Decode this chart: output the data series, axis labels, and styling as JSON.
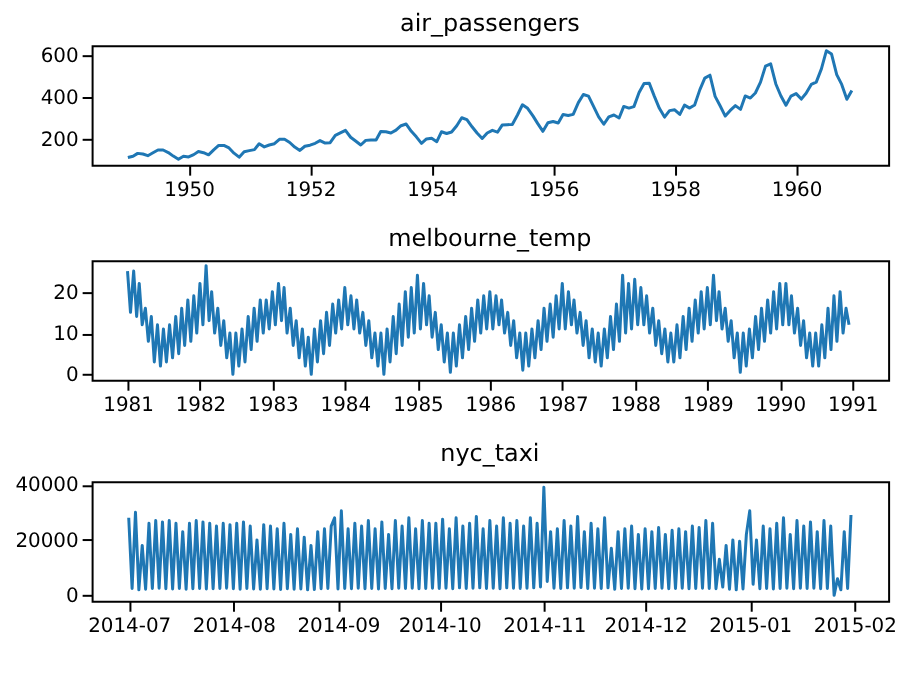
{
  "chart_data": [
    {
      "type": "line",
      "title": "air_passengers",
      "color": "#1f77b4",
      "x": [
        "1949-01",
        "1949-02",
        "1949-03",
        "1949-04",
        "1949-05",
        "1949-06",
        "1949-07",
        "1949-08",
        "1949-09",
        "1949-10",
        "1949-11",
        "1949-12",
        "1950-01",
        "1950-02",
        "1950-03",
        "1950-04",
        "1950-05",
        "1950-06",
        "1950-07",
        "1950-08",
        "1950-09",
        "1950-10",
        "1950-11",
        "1950-12",
        "1951-01",
        "1951-02",
        "1951-03",
        "1951-04",
        "1951-05",
        "1951-06",
        "1951-07",
        "1951-08",
        "1951-09",
        "1951-10",
        "1951-11",
        "1951-12",
        "1952-01",
        "1952-02",
        "1952-03",
        "1952-04",
        "1952-05",
        "1952-06",
        "1952-07",
        "1952-08",
        "1952-09",
        "1952-10",
        "1952-11",
        "1952-12",
        "1953-01",
        "1953-02",
        "1953-03",
        "1953-04",
        "1953-05",
        "1953-06",
        "1953-07",
        "1953-08",
        "1953-09",
        "1953-10",
        "1953-11",
        "1953-12",
        "1954-01",
        "1954-02",
        "1954-03",
        "1954-04",
        "1954-05",
        "1954-06",
        "1954-07",
        "1954-08",
        "1954-09",
        "1954-10",
        "1954-11",
        "1954-12",
        "1955-01",
        "1955-02",
        "1955-03",
        "1955-04",
        "1955-05",
        "1955-06",
        "1955-07",
        "1955-08",
        "1955-09",
        "1955-10",
        "1955-11",
        "1955-12",
        "1956-01",
        "1956-02",
        "1956-03",
        "1956-04",
        "1956-05",
        "1956-06",
        "1956-07",
        "1956-08",
        "1956-09",
        "1956-10",
        "1956-11",
        "1956-12",
        "1957-01",
        "1957-02",
        "1957-03",
        "1957-04",
        "1957-05",
        "1957-06",
        "1957-07",
        "1957-08",
        "1957-09",
        "1957-10",
        "1957-11",
        "1957-12",
        "1958-01",
        "1958-02",
        "1958-03",
        "1958-04",
        "1958-05",
        "1958-06",
        "1958-07",
        "1958-08",
        "1958-09",
        "1958-10",
        "1958-11",
        "1958-12",
        "1959-01",
        "1959-02",
        "1959-03",
        "1959-04",
        "1959-05",
        "1959-06",
        "1959-07",
        "1959-08",
        "1959-09",
        "1959-10",
        "1959-11",
        "1959-12",
        "1960-01",
        "1960-02",
        "1960-03",
        "1960-04",
        "1960-05",
        "1960-06",
        "1960-07",
        "1960-08",
        "1960-09",
        "1960-10",
        "1960-11",
        "1960-12"
      ],
      "values": [
        112,
        118,
        132,
        129,
        121,
        135,
        148,
        148,
        136,
        119,
        104,
        118,
        115,
        126,
        141,
        135,
        125,
        149,
        170,
        170,
        158,
        133,
        114,
        140,
        145,
        150,
        178,
        163,
        172,
        178,
        199,
        199,
        184,
        162,
        146,
        166,
        171,
        180,
        193,
        181,
        183,
        218,
        230,
        242,
        209,
        191,
        172,
        194,
        196,
        196,
        236,
        235,
        229,
        243,
        264,
        272,
        237,
        211,
        180,
        201,
        204,
        188,
        235,
        227,
        234,
        264,
        302,
        293,
        259,
        229,
        203,
        229,
        242,
        233,
        267,
        269,
        270,
        315,
        364,
        347,
        312,
        274,
        237,
        278,
        284,
        277,
        317,
        313,
        318,
        374,
        413,
        405,
        355,
        306,
        271,
        306,
        315,
        301,
        356,
        348,
        355,
        422,
        465,
        467,
        404,
        347,
        305,
        336,
        340,
        318,
        362,
        348,
        363,
        435,
        491,
        505,
        404,
        359,
        310,
        337,
        360,
        342,
        406,
        396,
        420,
        472,
        548,
        559,
        463,
        407,
        362,
        405,
        417,
        391,
        419,
        461,
        472,
        535,
        622,
        606,
        508,
        461,
        390,
        432
      ],
      "xlim": [
        "1948-05-28",
        "1961-07-07"
      ],
      "ylim": [
        78,
        648
      ],
      "xticks": [
        {
          "value": "1950",
          "label": "1950"
        },
        {
          "value": "1952",
          "label": "1952"
        },
        {
          "value": "1954",
          "label": "1954"
        },
        {
          "value": "1956",
          "label": "1956"
        },
        {
          "value": "1958",
          "label": "1958"
        },
        {
          "value": "1960",
          "label": "1960"
        }
      ],
      "yticks": [
        200,
        400,
        600
      ]
    },
    {
      "type": "line",
      "title": "melbourne_temp",
      "color": "#1f77b4",
      "x": [
        "1981-01-01",
        "1981-01-16",
        "1981-02-01",
        "1981-02-16",
        "1981-03-01",
        "1981-03-16",
        "1981-04-01",
        "1981-04-16",
        "1981-05-01",
        "1981-05-16",
        "1981-06-01",
        "1981-06-16",
        "1981-07-01",
        "1981-07-16",
        "1981-08-01",
        "1981-08-16",
        "1981-09-01",
        "1981-09-16",
        "1981-10-01",
        "1981-10-16",
        "1981-11-01",
        "1981-11-16",
        "1981-12-01",
        "1981-12-16",
        "1982-01-01",
        "1982-01-16",
        "1982-02-01",
        "1982-02-16",
        "1982-03-01",
        "1982-03-16",
        "1982-04-01",
        "1982-04-16",
        "1982-05-01",
        "1982-05-16",
        "1982-06-01",
        "1982-06-16",
        "1982-07-01",
        "1982-07-16",
        "1982-08-01",
        "1982-08-16",
        "1982-09-01",
        "1982-09-16",
        "1982-10-01",
        "1982-10-16",
        "1982-11-01",
        "1982-11-16",
        "1982-12-01",
        "1982-12-16",
        "1983-01-01",
        "1983-01-16",
        "1983-02-01",
        "1983-02-16",
        "1983-03-01",
        "1983-03-16",
        "1983-04-01",
        "1983-04-16",
        "1983-05-01",
        "1983-05-16",
        "1983-06-01",
        "1983-06-16",
        "1983-07-01",
        "1983-07-16",
        "1983-08-01",
        "1983-08-16",
        "1983-09-01",
        "1983-09-16",
        "1983-10-01",
        "1983-10-16",
        "1983-11-01",
        "1983-11-16",
        "1983-12-01",
        "1983-12-16",
        "1984-01-01",
        "1984-01-16",
        "1984-02-01",
        "1984-02-16",
        "1984-03-01",
        "1984-03-16",
        "1984-04-01",
        "1984-04-16",
        "1984-05-01",
        "1984-05-16",
        "1984-06-01",
        "1984-06-16",
        "1984-07-01",
        "1984-07-16",
        "1984-08-01",
        "1984-08-16",
        "1984-09-01",
        "1984-09-16",
        "1984-10-01",
        "1984-10-16",
        "1984-11-01",
        "1984-11-16",
        "1984-12-01",
        "1984-12-16",
        "1985-01-01",
        "1985-01-16",
        "1985-02-01",
        "1985-02-16",
        "1985-03-01",
        "1985-03-16",
        "1985-04-01",
        "1985-04-16",
        "1985-05-01",
        "1985-05-16",
        "1985-06-01",
        "1985-06-16",
        "1985-07-01",
        "1985-07-16",
        "1985-08-01",
        "1985-08-16",
        "1985-09-01",
        "1985-09-16",
        "1985-10-01",
        "1985-10-16",
        "1985-11-01",
        "1985-11-16",
        "1985-12-01",
        "1985-12-16",
        "1986-01-01",
        "1986-01-16",
        "1986-02-01",
        "1986-02-16",
        "1986-03-01",
        "1986-03-16",
        "1986-04-01",
        "1986-04-16",
        "1986-05-01",
        "1986-05-16",
        "1986-06-01",
        "1986-06-16",
        "1986-07-01",
        "1986-07-16",
        "1986-08-01",
        "1986-08-16",
        "1986-09-01",
        "1986-09-16",
        "1986-10-01",
        "1986-10-16",
        "1986-11-01",
        "1986-11-16",
        "1986-12-01",
        "1986-12-16",
        "1987-01-01",
        "1987-01-16",
        "1987-02-01",
        "1987-02-16",
        "1987-03-01",
        "1987-03-16",
        "1987-04-01",
        "1987-04-16",
        "1987-05-01",
        "1987-05-16",
        "1987-06-01",
        "1987-06-16",
        "1987-07-01",
        "1987-07-16",
        "1987-08-01",
        "1987-08-16",
        "1987-09-01",
        "1987-09-16",
        "1987-10-01",
        "1987-10-16",
        "1987-11-01",
        "1987-11-16",
        "1987-12-01",
        "1987-12-16",
        "1988-01-01",
        "1988-01-16",
        "1988-02-01",
        "1988-02-16",
        "1988-03-01",
        "1988-03-16",
        "1988-04-01",
        "1988-04-16",
        "1988-05-01",
        "1988-05-16",
        "1988-06-01",
        "1988-06-16",
        "1988-07-01",
        "1988-07-16",
        "1988-08-01",
        "1988-08-16",
        "1988-09-01",
        "1988-09-16",
        "1988-10-01",
        "1988-10-16",
        "1988-11-01",
        "1988-11-16",
        "1988-12-01",
        "1988-12-16",
        "1989-01-01",
        "1989-01-16",
        "1989-02-01",
        "1989-02-16",
        "1989-03-01",
        "1989-03-16",
        "1989-04-01",
        "1989-04-16",
        "1989-05-01",
        "1989-05-16",
        "1989-06-01",
        "1989-06-16",
        "1989-07-01",
        "1989-07-16",
        "1989-08-01",
        "1989-08-16",
        "1989-09-01",
        "1989-09-16",
        "1989-10-01",
        "1989-10-16",
        "1989-11-01",
        "1989-11-16",
        "1989-12-01",
        "1989-12-16",
        "1990-01-01",
        "1990-01-16",
        "1990-02-01",
        "1990-02-16",
        "1990-03-01",
        "1990-03-16",
        "1990-04-01",
        "1990-04-16",
        "1990-05-01",
        "1990-05-16",
        "1990-06-01",
        "1990-06-16",
        "1990-07-01",
        "1990-07-16",
        "1990-08-01",
        "1990-08-16",
        "1990-09-01",
        "1990-09-16",
        "1990-10-01",
        "1990-10-16",
        "1990-11-01",
        "1990-11-16",
        "1990-12-01",
        "1990-12-16"
      ],
      "values": [
        25,
        15,
        25,
        14,
        22,
        12,
        16,
        8,
        14,
        3,
        12,
        2,
        11,
        3,
        12,
        4,
        14,
        5,
        16,
        7,
        18,
        8,
        19,
        10,
        22,
        12,
        26.3,
        13,
        20,
        10,
        16,
        7,
        13,
        4,
        10,
        0,
        10,
        2,
        11,
        3,
        14,
        6,
        16,
        8,
        18,
        10,
        18,
        11,
        20,
        12,
        22,
        13,
        21,
        10,
        16,
        7,
        13,
        4,
        11,
        2,
        9,
        0,
        11,
        3,
        13,
        5,
        15,
        7,
        17,
        10,
        18,
        11,
        21,
        12,
        19,
        11,
        18,
        10,
        15,
        7,
        13,
        4,
        10,
        2,
        10,
        0,
        11,
        3,
        14,
        5,
        17,
        7,
        20,
        9,
        21,
        10,
        24,
        11,
        22,
        12,
        19,
        9,
        15,
        6,
        12,
        3,
        10,
        0.5,
        10,
        2,
        12,
        4,
        14,
        6,
        16,
        8,
        18,
        10,
        19,
        11,
        20,
        11,
        19,
        12,
        18,
        10,
        15,
        7,
        13,
        4,
        10,
        1,
        10,
        2,
        11,
        4,
        13,
        6,
        16,
        8,
        17,
        9,
        19,
        11,
        22,
        11,
        20,
        12,
        18,
        10,
        15,
        7,
        13,
        4,
        11,
        3,
        10,
        2,
        11,
        4,
        14,
        6,
        17,
        8,
        24,
        10,
        22,
        11,
        23,
        12,
        21,
        12,
        19,
        10,
        16,
        7,
        13,
        5,
        11,
        3,
        10,
        3,
        12,
        4,
        14,
        6,
        16,
        8,
        18,
        10,
        20,
        11,
        21,
        12,
        24,
        13,
        20,
        11,
        16,
        8,
        13,
        4,
        10,
        0.5,
        10,
        2,
        11,
        4,
        14,
        6,
        16,
        8,
        18,
        10,
        20,
        11,
        22,
        12,
        22,
        12,
        19,
        10,
        16,
        7,
        13,
        4,
        10,
        2,
        10,
        2,
        12,
        4,
        16,
        6,
        19,
        8,
        20,
        10,
        16,
        12
      ],
      "xlim": [
        "1980-07-04",
        "1991-07-01"
      ],
      "ylim": [
        -1.3,
        27.6
      ],
      "xticks": [
        {
          "value": "1981",
          "label": "1981"
        },
        {
          "value": "1982",
          "label": "1982"
        },
        {
          "value": "1983",
          "label": "1983"
        },
        {
          "value": "1984",
          "label": "1984"
        },
        {
          "value": "1985",
          "label": "1985"
        },
        {
          "value": "1986",
          "label": "1986"
        },
        {
          "value": "1987",
          "label": "1987"
        },
        {
          "value": "1988",
          "label": "1988"
        },
        {
          "value": "1989",
          "label": "1989"
        },
        {
          "value": "1990",
          "label": "1990"
        },
        {
          "value": "1991",
          "label": "1991"
        }
      ],
      "yticks": [
        0,
        10,
        20
      ]
    },
    {
      "type": "line",
      "title": "nyc_taxi",
      "color": "#1f77b4",
      "x": [
        "2014-07-01",
        "2014-07-02",
        "2014-07-03",
        "2014-07-04",
        "2014-07-05",
        "2014-07-06",
        "2014-07-07",
        "2014-07-08",
        "2014-07-09",
        "2014-07-10",
        "2014-07-11",
        "2014-07-12",
        "2014-07-13",
        "2014-07-14",
        "2014-07-15",
        "2014-07-16",
        "2014-07-17",
        "2014-07-18",
        "2014-07-19",
        "2014-07-20",
        "2014-07-21",
        "2014-07-22",
        "2014-07-23",
        "2014-07-24",
        "2014-07-25",
        "2014-07-26",
        "2014-07-27",
        "2014-07-28",
        "2014-07-29",
        "2014-07-30",
        "2014-07-31",
        "2014-08-01",
        "2014-08-02",
        "2014-08-03",
        "2014-08-04",
        "2014-08-05",
        "2014-08-06",
        "2014-08-07",
        "2014-08-08",
        "2014-08-09",
        "2014-08-10",
        "2014-08-11",
        "2014-08-12",
        "2014-08-13",
        "2014-08-14",
        "2014-08-15",
        "2014-08-16",
        "2014-08-17",
        "2014-08-18",
        "2014-08-19",
        "2014-08-20",
        "2014-08-21",
        "2014-08-22",
        "2014-08-23",
        "2014-08-24",
        "2014-08-25",
        "2014-08-26",
        "2014-08-27",
        "2014-08-28",
        "2014-08-29",
        "2014-08-30",
        "2014-08-31",
        "2014-09-01",
        "2014-09-02",
        "2014-09-03",
        "2014-09-04",
        "2014-09-05",
        "2014-09-06",
        "2014-09-07",
        "2014-09-08",
        "2014-09-09",
        "2014-09-10",
        "2014-09-11",
        "2014-09-12",
        "2014-09-13",
        "2014-09-14",
        "2014-09-15",
        "2014-09-16",
        "2014-09-17",
        "2014-09-18",
        "2014-09-19",
        "2014-09-20",
        "2014-09-21",
        "2014-09-22",
        "2014-09-23",
        "2014-09-24",
        "2014-09-25",
        "2014-09-26",
        "2014-09-27",
        "2014-09-28",
        "2014-09-29",
        "2014-09-30",
        "2014-10-01",
        "2014-10-02",
        "2014-10-03",
        "2014-10-04",
        "2014-10-05",
        "2014-10-06",
        "2014-10-07",
        "2014-10-08",
        "2014-10-09",
        "2014-10-10",
        "2014-10-11",
        "2014-10-12",
        "2014-10-13",
        "2014-10-14",
        "2014-10-15",
        "2014-10-16",
        "2014-10-17",
        "2014-10-18",
        "2014-10-19",
        "2014-10-20",
        "2014-10-21",
        "2014-10-22",
        "2014-10-23",
        "2014-10-24",
        "2014-10-25",
        "2014-10-26",
        "2014-10-27",
        "2014-10-28",
        "2014-10-29",
        "2014-10-30",
        "2014-10-31",
        "2014-11-01",
        "2014-11-02",
        "2014-11-03",
        "2014-11-04",
        "2014-11-05",
        "2014-11-06",
        "2014-11-07",
        "2014-11-08",
        "2014-11-09",
        "2014-11-10",
        "2014-11-11",
        "2014-11-12",
        "2014-11-13",
        "2014-11-14",
        "2014-11-15",
        "2014-11-16",
        "2014-11-17",
        "2014-11-18",
        "2014-11-19",
        "2014-11-20",
        "2014-11-21",
        "2014-11-22",
        "2014-11-23",
        "2014-11-24",
        "2014-11-25",
        "2014-11-26",
        "2014-11-27",
        "2014-11-28",
        "2014-11-29",
        "2014-11-30",
        "2014-12-01",
        "2014-12-02",
        "2014-12-03",
        "2014-12-04",
        "2014-12-05",
        "2014-12-06",
        "2014-12-07",
        "2014-12-08",
        "2014-12-09",
        "2014-12-10",
        "2014-12-11",
        "2014-12-12",
        "2014-12-13",
        "2014-12-14",
        "2014-12-15",
        "2014-12-16",
        "2014-12-17",
        "2014-12-18",
        "2014-12-19",
        "2014-12-20",
        "2014-12-21",
        "2014-12-22",
        "2014-12-23",
        "2014-12-24",
        "2014-12-25",
        "2014-12-26",
        "2014-12-27",
        "2014-12-28",
        "2014-12-29",
        "2014-12-30",
        "2014-12-31",
        "2015-01-01",
        "2015-01-02",
        "2015-01-03",
        "2015-01-04",
        "2015-01-05",
        "2015-01-06",
        "2015-01-07",
        "2015-01-08",
        "2015-01-09",
        "2015-01-10",
        "2015-01-11",
        "2015-01-12",
        "2015-01-13",
        "2015-01-14",
        "2015-01-15",
        "2015-01-16",
        "2015-01-17",
        "2015-01-18",
        "2015-01-19",
        "2015-01-20",
        "2015-01-21",
        "2015-01-22",
        "2015-01-23",
        "2015-01-24",
        "2015-01-25",
        "2015-01-26",
        "2015-01-27",
        "2015-01-28",
        "2015-01-29",
        "2015-01-30",
        "2015-01-31"
      ],
      "values": [
        28000,
        2500,
        30000,
        2000,
        18000,
        2200,
        26000,
        2500,
        27000,
        2600,
        26500,
        2400,
        27000,
        2300,
        26000,
        2500,
        23000,
        2200,
        26000,
        2400,
        27000,
        2500,
        26500,
        2300,
        26000,
        2400,
        25000,
        2500,
        26000,
        2600,
        25500,
        2400,
        26000,
        2200,
        26500,
        2500,
        25000,
        2300,
        20000,
        2200,
        25500,
        2400,
        25000,
        2300,
        24000,
        2100,
        26000,
        2400,
        22000,
        2200,
        24000,
        2300,
        21000,
        2000,
        18000,
        2100,
        23000,
        2400,
        24000,
        2500,
        25000,
        28000,
        2300,
        30500,
        2500,
        24000,
        2400,
        26000,
        2600,
        25000,
        2400,
        27000,
        2500,
        24000,
        2300,
        26500,
        2500,
        22000,
        2400,
        27000,
        2600,
        25000,
        2500,
        28000,
        2600,
        24000,
        2400,
        27000,
        2500,
        26000,
        2600,
        26000,
        2500,
        27500,
        2600,
        24000,
        2400,
        28000,
        2700,
        25000,
        2500,
        26000,
        2600,
        28500,
        2700,
        24000,
        2500,
        27000,
        2600,
        25000,
        2400,
        28000,
        2700,
        26000,
        2600,
        27000,
        2500,
        25000,
        2600,
        28000,
        2700,
        26000,
        3000,
        39000,
        5000,
        23000,
        2600,
        24000,
        2500,
        27000,
        2700,
        25000,
        2600,
        28500,
        2800,
        23000,
        2500,
        26000,
        2600,
        24000,
        2500,
        28000,
        2700,
        17000,
        2200,
        23000,
        2500,
        24000,
        2600,
        25000,
        2400,
        22000,
        2300,
        24000,
        2400,
        23000,
        2500,
        24500,
        2600,
        22000,
        2400,
        23500,
        2500,
        24000,
        2600,
        23000,
        2400,
        25000,
        2500,
        24500,
        2600,
        27000,
        2500,
        26000,
        2400,
        13000,
        3000,
        18000,
        2200,
        20000,
        2000,
        19500,
        2300,
        22000,
        30500,
        4000,
        20000,
        2400,
        25000,
        2500,
        24000,
        2300,
        26000,
        2500,
        28000,
        2600,
        22000,
        2400,
        27000,
        2600,
        25000,
        2500,
        26500,
        2600,
        23000,
        2400,
        27000,
        2500,
        25000,
        0,
        6000,
        2000,
        23000,
        2500,
        29000
      ],
      "xlim": [
        "2014-06-20",
        "2015-02-11"
      ],
      "ylim": [
        -1960,
        41160
      ],
      "xticks": [
        {
          "value": "2014-07",
          "label": "2014-07"
        },
        {
          "value": "2014-08",
          "label": "2014-08"
        },
        {
          "value": "2014-09",
          "label": "2014-09"
        },
        {
          "value": "2014-10",
          "label": "2014-10"
        },
        {
          "value": "2014-11",
          "label": "2014-11"
        },
        {
          "value": "2014-12",
          "label": "2014-12"
        },
        {
          "value": "2015-01",
          "label": "2015-01"
        },
        {
          "value": "2015-02",
          "label": "2015-02"
        }
      ],
      "yticks": [
        0,
        20000,
        40000
      ]
    }
  ]
}
